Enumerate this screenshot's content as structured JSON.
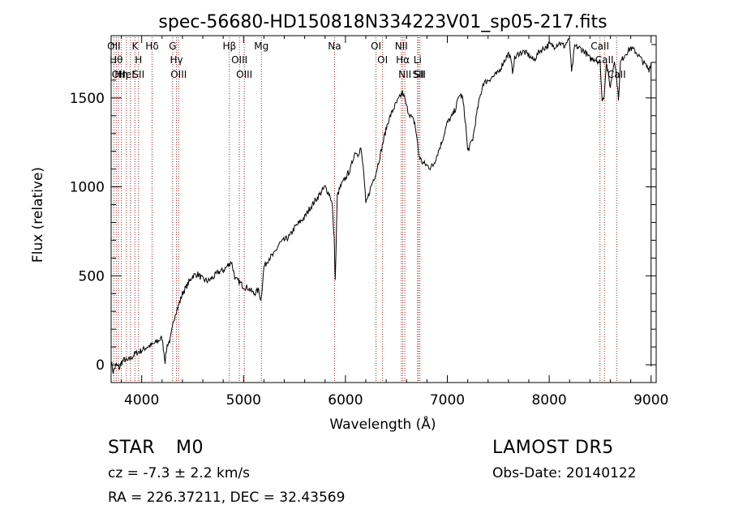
{
  "chart_data": {
    "type": "line",
    "title": "spec-56680-HD150818N334223V01_sp05-217.fits",
    "xlabel": "Wavelength (Å)",
    "ylabel": "Flux (relative)",
    "xlim": [
      3700,
      9050
    ],
    "ylim": [
      -100,
      1850
    ],
    "x_ticks": [
      4000,
      5000,
      6000,
      7000,
      8000,
      9000
    ],
    "y_ticks": [
      0,
      500,
      1000,
      1500
    ],
    "grid": false,
    "line_color": "#000000",
    "marker_color": "#b22222",
    "series": [
      {
        "x": [
          3700,
          3720,
          3750,
          3780,
          3800,
          3830,
          3860,
          3900,
          3930,
          3960,
          4000,
          4050,
          4100,
          4150,
          4200,
          4230,
          4250,
          4280,
          4300,
          4330,
          4360,
          4400,
          4450,
          4500,
          4550,
          4600,
          4650,
          4700,
          4750,
          4800,
          4850,
          4880,
          4920,
          4950,
          5000,
          5050,
          5100,
          5150,
          5170,
          5200,
          5250,
          5300,
          5350,
          5400,
          5450,
          5500,
          5550,
          5600,
          5650,
          5700,
          5750,
          5800,
          5850,
          5870,
          5890,
          5900,
          5920,
          5950,
          6000,
          6050,
          6080,
          6100,
          6120,
          6150,
          6180,
          6200,
          6250,
          6280,
          6300,
          6350,
          6380,
          6420,
          6450,
          6480,
          6520,
          6560,
          6580,
          6600,
          6620,
          6650,
          6680,
          6700,
          6720,
          6750,
          6800,
          6830,
          6860,
          6900,
          6950,
          7000,
          7050,
          7080,
          7100,
          7120,
          7150,
          7180,
          7200,
          7250,
          7300,
          7350,
          7400,
          7450,
          7500,
          7550,
          7600,
          7620,
          7640,
          7660,
          7700,
          7750,
          7800,
          7850,
          7900,
          7950,
          8000,
          8050,
          8100,
          8150,
          8180,
          8200,
          8220,
          8250,
          8300,
          8350,
          8400,
          8450,
          8500,
          8520,
          8540,
          8560,
          8600,
          8640,
          8660,
          8680,
          8700,
          8750,
          8800,
          8850,
          8900,
          8950,
          8980,
          9000
        ],
        "y": [
          20,
          -40,
          0,
          -20,
          10,
          30,
          20,
          40,
          60,
          70,
          80,
          100,
          110,
          130,
          150,
          20,
          110,
          140,
          200,
          290,
          330,
          400,
          450,
          500,
          510,
          480,
          470,
          490,
          520,
          530,
          560,
          580,
          480,
          470,
          440,
          430,
          400,
          420,
          360,
          550,
          600,
          620,
          680,
          700,
          720,
          770,
          800,
          830,
          880,
          920,
          960,
          1000,
          950,
          900,
          700,
          470,
          950,
          1000,
          1050,
          1100,
          1170,
          1200,
          1180,
          1220,
          1080,
          900,
          1000,
          1050,
          1080,
          1200,
          1280,
          1370,
          1410,
          1450,
          1490,
          1530,
          1500,
          1450,
          1420,
          1390,
          1360,
          1280,
          1180,
          1140,
          1120,
          1110,
          1120,
          1180,
          1260,
          1360,
          1400,
          1440,
          1480,
          1520,
          1500,
          1350,
          1200,
          1270,
          1450,
          1580,
          1600,
          1620,
          1640,
          1700,
          1750,
          1720,
          1650,
          1720,
          1750,
          1760,
          1740,
          1710,
          1760,
          1780,
          1800,
          1790,
          1810,
          1790,
          1820,
          1820,
          1640,
          1790,
          1780,
          1760,
          1720,
          1720,
          1700,
          1480,
          1520,
          1700,
          1560,
          1720,
          1620,
          1500,
          1700,
          1750,
          1780,
          1760,
          1720,
          1680,
          1660,
          1700
        ]
      }
    ],
    "lines": [
      {
        "wavelength": 3727,
        "labels": [
          "OII"
        ]
      },
      {
        "wavelength": 3750,
        "labels": [
          "Hθ"
        ]
      },
      {
        "wavelength": 3772,
        "labels": [
          "OII"
        ]
      },
      {
        "wavelength": 3800,
        "labels": [
          "Hη"
        ]
      },
      {
        "wavelength": 3850,
        "labels": [
          "HeI"
        ]
      },
      {
        "wavelength": 3889,
        "labels": [
          ""
        ]
      },
      {
        "wavelength": 3934,
        "labels": [
          "K"
        ]
      },
      {
        "wavelength": 3969,
        "labels": [
          "H",
          "SII"
        ]
      },
      {
        "wavelength": 4102,
        "labels": [
          "Hδ"
        ]
      },
      {
        "wavelength": 4304,
        "labels": [
          "G"
        ]
      },
      {
        "wavelength": 4341,
        "labels": [
          "Hγ"
        ]
      },
      {
        "wavelength": 4363,
        "labels": [
          "OIII"
        ]
      },
      {
        "wavelength": 4861,
        "labels": [
          "Hβ"
        ]
      },
      {
        "wavelength": 4959,
        "labels": [
          "OIII"
        ]
      },
      {
        "wavelength": 5007,
        "labels": [
          "OIII"
        ]
      },
      {
        "wavelength": 5175,
        "labels": [
          "Mg"
        ]
      },
      {
        "wavelength": 5893,
        "labels": [
          "Na"
        ]
      },
      {
        "wavelength": 6300,
        "labels": [
          "OI"
        ]
      },
      {
        "wavelength": 6364,
        "labels": [
          "OI"
        ]
      },
      {
        "wavelength": 6548,
        "labels": [
          "NII"
        ]
      },
      {
        "wavelength": 6563,
        "labels": [
          "Hα"
        ]
      },
      {
        "wavelength": 6583,
        "labels": [
          "NII"
        ]
      },
      {
        "wavelength": 6708,
        "labels": [
          "Li"
        ]
      },
      {
        "wavelength": 6716,
        "labels": [
          "SII"
        ]
      },
      {
        "wavelength": 6731,
        "labels": [
          "SII"
        ]
      },
      {
        "wavelength": 8498,
        "labels": [
          "CaII"
        ]
      },
      {
        "wavelength": 8542,
        "labels": [
          "CaII"
        ]
      },
      {
        "wavelength": 8662,
        "labels": [
          "CaII"
        ]
      }
    ]
  },
  "info": {
    "object_class": "STAR",
    "subclass": "M0",
    "survey": "LAMOST DR5",
    "redshift": "cz = -7.3 ± 2.2 km/s",
    "obs_date": "Obs-Date: 20140122",
    "coords": "RA = 226.37211, DEC =  32.43569"
  }
}
